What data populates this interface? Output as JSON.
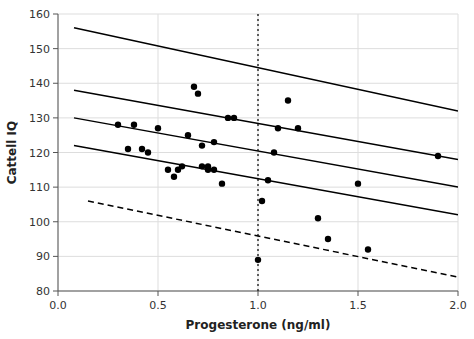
{
  "chart_data": {
    "type": "scatter",
    "xlabel": "Progesterone (ng/ml)",
    "ylabel": "Cattell IQ",
    "xlim": [
      0,
      2
    ],
    "ylim": [
      80,
      160
    ],
    "xticks": [
      {
        "value": 0,
        "label": "0.0"
      },
      {
        "value": 0.5,
        "label": "0.5"
      },
      {
        "value": 1,
        "label": "1.0"
      },
      {
        "value": 1.5,
        "label": "1.5"
      },
      {
        "value": 2,
        "label": "2.0"
      }
    ],
    "yticks": [
      80,
      90,
      100,
      110,
      120,
      130,
      140,
      150,
      160
    ],
    "grid": true,
    "series": [
      {
        "type": "vline",
        "x": [
          1.0
        ],
        "color": "#000000",
        "line_style": "dotted"
      },
      {
        "type": "line",
        "x": [
          0.08,
          2.0
        ],
        "values": [
          156,
          132
        ],
        "color": "#000000",
        "line_style": "solid"
      },
      {
        "type": "line",
        "x": [
          0.08,
          2.0
        ],
        "values": [
          138,
          118
        ],
        "color": "#000000",
        "line_style": "solid"
      },
      {
        "type": "line",
        "x": [
          0.08,
          2.0
        ],
        "values": [
          130,
          110
        ],
        "color": "#000000",
        "line_style": "solid"
      },
      {
        "type": "line",
        "x": [
          0.08,
          2.0
        ],
        "values": [
          122,
          102
        ],
        "color": "#000000",
        "line_style": "solid"
      },
      {
        "type": "line",
        "x": [
          0.15,
          2.0
        ],
        "values": [
          106,
          84
        ],
        "color": "#000000",
        "line_style": "dashed"
      },
      {
        "type": "scatter",
        "marker": "circle",
        "color": "#000000",
        "x": [
          0.3,
          0.35,
          0.38,
          0.42,
          0.45,
          0.5,
          0.55,
          0.58,
          0.6,
          0.62,
          0.65,
          0.68,
          0.7,
          0.72,
          0.72,
          0.75,
          0.75,
          0.78,
          0.78,
          0.82,
          0.85,
          0.88,
          1.0,
          1.02,
          1.05,
          1.08,
          1.1,
          1.15,
          1.2,
          1.3,
          1.35,
          1.5,
          1.55,
          1.9
        ],
        "values": [
          128,
          121,
          128,
          121,
          120,
          127,
          115,
          113,
          115,
          116,
          125,
          139,
          137,
          116,
          122,
          115,
          116,
          123,
          115,
          111,
          130,
          130,
          89,
          106,
          112,
          120,
          127,
          135,
          127,
          101,
          95,
          111,
          92,
          119
        ]
      }
    ]
  }
}
